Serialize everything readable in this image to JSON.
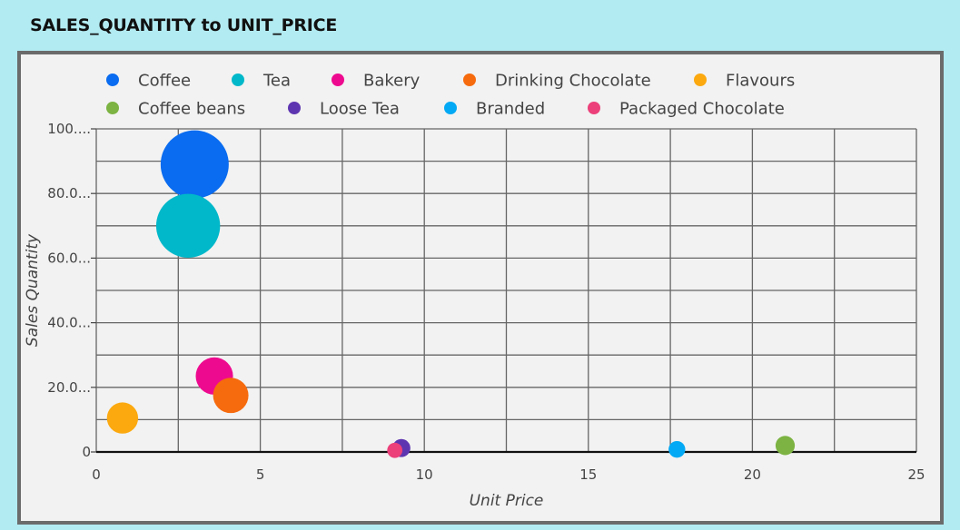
{
  "title": "SALES_QUANTITY to UNIT_PRICE",
  "chart_data": {
    "type": "scatter",
    "title": "SALES_QUANTITY to UNIT_PRICE",
    "xlabel": "Unit Price",
    "ylabel": "Sales Quantity",
    "xlim": [
      0,
      25
    ],
    "ylim": [
      0,
      100
    ],
    "x_ticks": [
      0,
      5,
      10,
      15,
      20,
      25
    ],
    "x_tick_labels": [
      "0",
      "5",
      "10",
      "15",
      "20",
      "25"
    ],
    "y_ticks": [
      0,
      20,
      40,
      60,
      80,
      100
    ],
    "y_tick_labels": [
      "0",
      "20.0...",
      "40.0...",
      "60.0...",
      "80.0...",
      "100...."
    ],
    "grid": true,
    "legend_position": "top",
    "series": [
      {
        "name": "Coffee",
        "color": "#0a6cf0",
        "x": 3.0,
        "y": 89,
        "size": 100
      },
      {
        "name": "Tea",
        "color": "#00b8c9",
        "x": 2.8,
        "y": 70,
        "size": 88
      },
      {
        "name": "Bakery",
        "color": "#ee0a8f",
        "x": 3.6,
        "y": 23.5,
        "size": 30
      },
      {
        "name": "Drinking Chocolate",
        "color": "#f66b0e",
        "x": 4.1,
        "y": 17.5,
        "size": 27
      },
      {
        "name": "Flavours",
        "color": "#fba90f",
        "x": 0.8,
        "y": 10.5,
        "size": 21
      },
      {
        "name": "Coffee beans",
        "color": "#7cb342",
        "x": 21.0,
        "y": 2.0,
        "size": 8
      },
      {
        "name": "Loose Tea",
        "color": "#5e35b1",
        "x": 9.3,
        "y": 1.2,
        "size": 7
      },
      {
        "name": "Branded",
        "color": "#03a9f4",
        "x": 17.7,
        "y": 0.8,
        "size": 6
      },
      {
        "name": "Packaged Chocolate",
        "color": "#ec407a",
        "x": 9.1,
        "y": 0.5,
        "size": 5
      }
    ]
  }
}
